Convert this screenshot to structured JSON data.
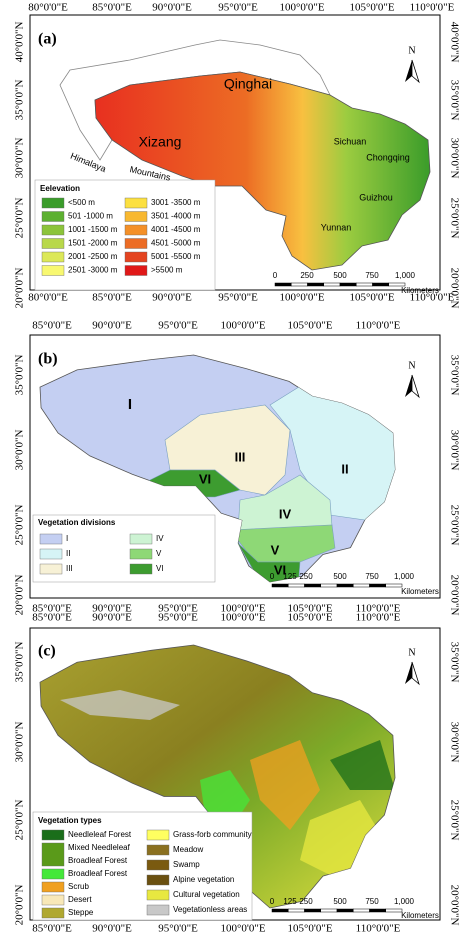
{
  "panels": [
    {
      "label": "(a)",
      "lon_labels": [
        "80°0'0\"E",
        "85°0'0\"E",
        "90°0'0\"E",
        "95°0'0\"E",
        "100°0'0\"E",
        "105°0'0\"E",
        "110°0'0\"E"
      ],
      "lat_labels": [
        "40°0'0\"N",
        "35°0'0\"N",
        "30°0'0\"N",
        "25°0'0\"N",
        "20°0'0\"N"
      ],
      "north": "N",
      "legend": {
        "title": "Eelevation",
        "items": [
          {
            "lines": [
              "<500 m"
            ],
            "color": "#3a9c2a"
          },
          {
            "lines": [
              "501 -1000 m"
            ],
            "color": "#5cb030"
          },
          {
            "lines": [
              "1001 -1500 m"
            ],
            "color": "#8cc43a"
          },
          {
            "lines": [
              "1501 -2000 m"
            ],
            "color": "#b8d84a"
          },
          {
            "lines": [
              "2001 -2500 m"
            ],
            "color": "#dce858"
          },
          {
            "lines": [
              "2501 -3000 m"
            ],
            "color": "#f8f870"
          },
          {
            "lines": [
              "3001 -3500 m"
            ],
            "color": "#fce040"
          },
          {
            "lines": [
              "3501 -4000 m"
            ],
            "color": "#f8b830"
          },
          {
            "lines": [
              "4001 -4500 m"
            ],
            "color": "#f49028"
          },
          {
            "lines": [
              "4501 -5000 m"
            ],
            "color": "#ec6c24"
          },
          {
            "lines": [
              "5001 -5500 m"
            ],
            "color": "#e44420"
          },
          {
            "lines": [
              ">5500 m"
            ],
            "color": "#e01818"
          }
        ]
      },
      "places": [
        "Qinghai",
        "Xizang",
        "Sichuan",
        "Chongqing",
        "Guizhou",
        "Yunnan",
        "Himalaya",
        "Mountains"
      ],
      "scale": {
        "labels": [
          "0",
          "250",
          "500",
          "750",
          "1,000"
        ],
        "unit": "Kilometers"
      }
    },
    {
      "label": "(b)",
      "lon_labels": [
        "85°0'0\"E",
        "90°0'0\"E",
        "95°0'0\"E",
        "100°0'0\"E",
        "105°0'0\"E",
        "110°0'0\"E"
      ],
      "lat_labels": [
        "35°0'0\"N",
        "30°0'0\"N",
        "25°0'0\"N",
        "20°0'0\"N"
      ],
      "north": "N",
      "legend": {
        "title": "Vegetation divisions",
        "items": [
          {
            "lines": [
              "I"
            ],
            "color": "#c4cff2"
          },
          {
            "lines": [
              "II"
            ],
            "color": "#d6f4f6"
          },
          {
            "lines": [
              "III"
            ],
            "color": "#f7f1d6"
          },
          {
            "lines": [
              "IV"
            ],
            "color": "#cdf3d3"
          },
          {
            "lines": [
              "V"
            ],
            "color": "#8ed876"
          },
          {
            "lines": [
              "VI"
            ],
            "color": "#3d9c30"
          }
        ]
      },
      "places": [
        "I",
        "II",
        "III",
        "IV",
        "V",
        "VI",
        "VI"
      ],
      "scale": {
        "labels": [
          "0",
          "125",
          "250",
          "500",
          "750",
          "1,000"
        ],
        "unit": "Kilometers"
      }
    },
    {
      "label": "(c)",
      "lon_labels": [
        "85°0'0\"E",
        "90°0'0\"E",
        "95°0'0\"E",
        "100°0'0\"E",
        "105°0'0\"E",
        "110°0'0\"E"
      ],
      "lat_labels": [
        "35°0'0\"N",
        "30°0'0\"N",
        "25°0'0\"N",
        "20°0'0\"N"
      ],
      "north": "N",
      "legend": {
        "title": "Vegetation types",
        "items": [
          {
            "lines": [
              "Needleleaf Forest"
            ],
            "color": "#1a6e1a"
          },
          {
            "lines": [
              "Mixed Needleleaf",
              "Broadleaf Forest"
            ],
            "color": "#5a9a1a"
          },
          {
            "lines": [
              "Broadleaf Forest"
            ],
            "color": "#44e83a"
          },
          {
            "lines": [
              "Scrub"
            ],
            "color": "#f0a020"
          },
          {
            "lines": [
              "Desert"
            ],
            "color": "#f8e8b8"
          },
          {
            "lines": [
              "Steppe"
            ],
            "color": "#b0a830"
          },
          {
            "lines": [
              "Grass-forb community"
            ],
            "color": "#ffff60"
          },
          {
            "lines": [
              "Meadow"
            ],
            "color": "#8a7020"
          },
          {
            "lines": [
              "Swamp"
            ],
            "color": "#7a5a10"
          },
          {
            "lines": [
              "Alpine vegetation"
            ],
            "color": "#6a5010"
          },
          {
            "lines": [
              "Cultural vegetation"
            ],
            "color": "#e8e840"
          },
          {
            "lines": [
              "Vegetationless areas"
            ],
            "color": "#c8c8c8"
          }
        ]
      },
      "places": [],
      "scale": {
        "labels": [
          "0",
          "125",
          "250",
          "500",
          "750",
          "1,000"
        ],
        "unit": "Kilometers"
      }
    }
  ]
}
